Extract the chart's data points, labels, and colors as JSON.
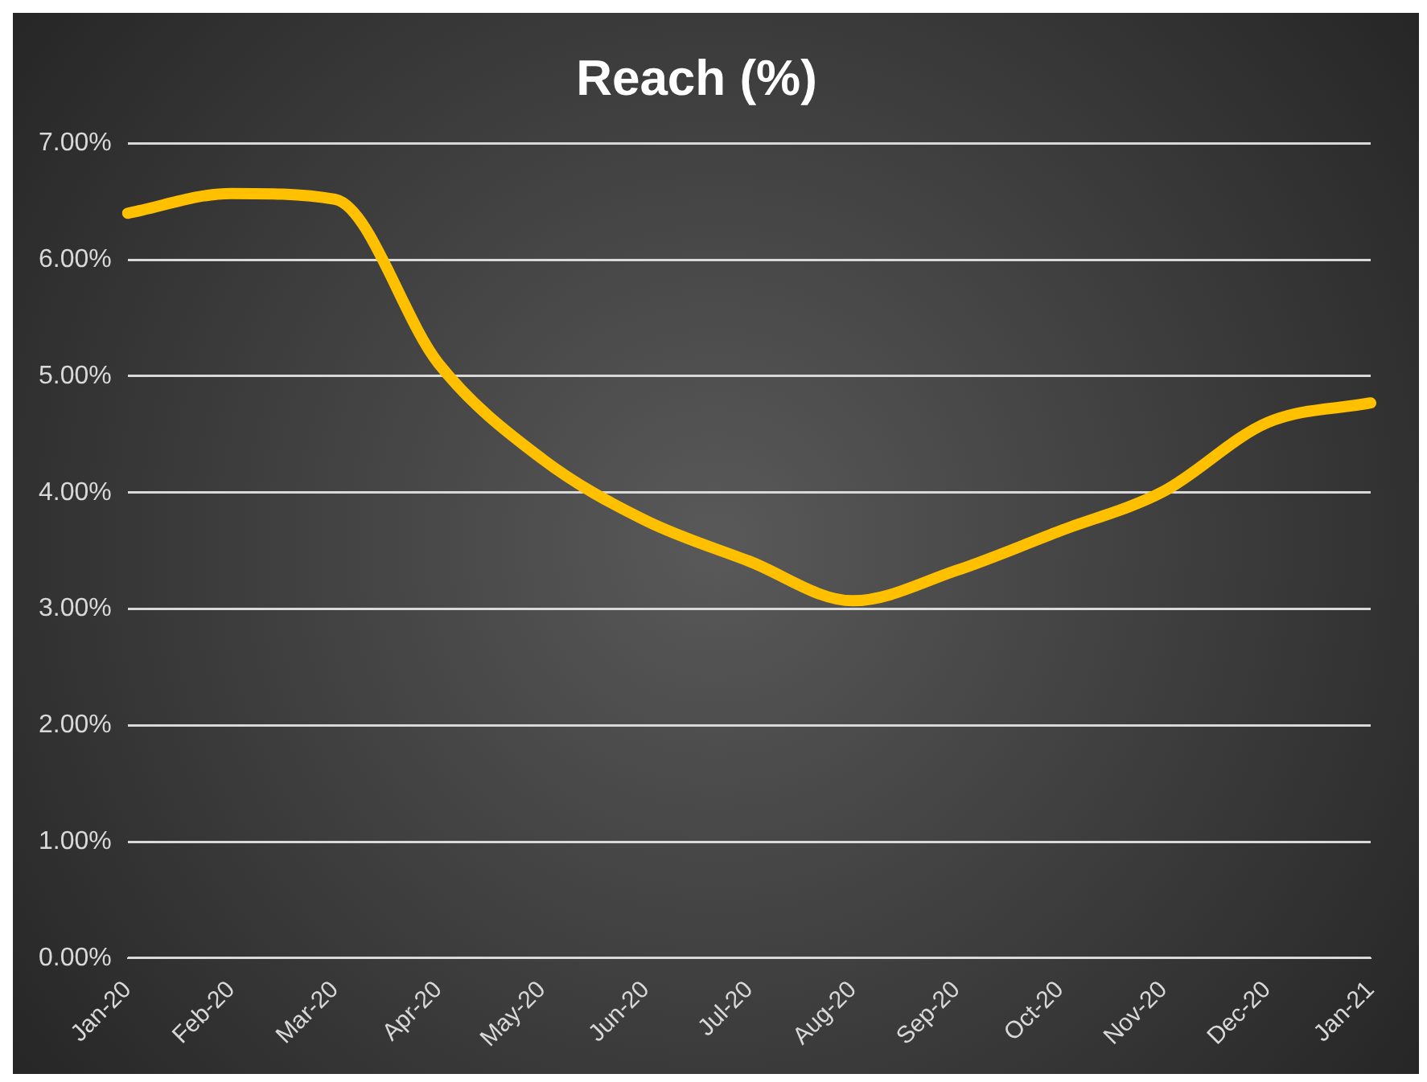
{
  "chart_data": {
    "type": "line",
    "title": "Reach (%)",
    "categories": [
      "Jan-20",
      "Feb-20",
      "Mar-20",
      "Apr-20",
      "May-20",
      "Jun-20",
      "Jul-20",
      "Aug-20",
      "Sep-20",
      "Oct-20",
      "Nov-20",
      "Dec-20",
      "Jan-21"
    ],
    "series": [
      {
        "color": "#ffc000",
        "values": [
          6.4,
          6.57,
          6.52,
          5.11,
          4.29,
          3.76,
          3.41,
          3.07,
          3.33,
          3.67,
          4.01,
          4.6,
          4.77
        ]
      }
    ],
    "ylim": [
      0,
      7
    ],
    "yticks": [
      {
        "value": 0,
        "label": "0.00%"
      },
      {
        "value": 1,
        "label": "1.00%"
      },
      {
        "value": 2,
        "label": "2.00%"
      },
      {
        "value": 3,
        "label": "3.00%"
      },
      {
        "value": 4,
        "label": "4.00%"
      },
      {
        "value": 5,
        "label": "5.00%"
      },
      {
        "value": 6,
        "label": "6.00%"
      },
      {
        "value": 7,
        "label": "7.00%"
      }
    ],
    "grid": "y",
    "legend": false,
    "marker": "none",
    "line_style": "solid"
  }
}
